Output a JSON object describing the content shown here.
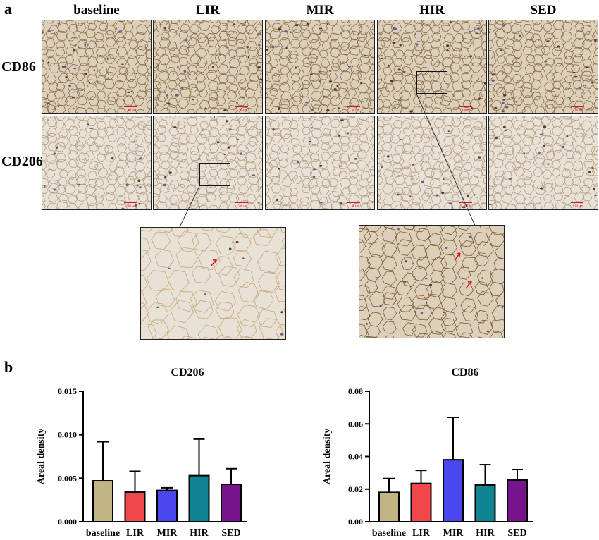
{
  "panel_a": {
    "letter": "a"
  },
  "panel_b": {
    "letter": "b"
  },
  "groups": [
    "baseline",
    "LIR",
    "MIR",
    "HIR",
    "SED"
  ],
  "rows": [
    "CD86",
    "CD206"
  ],
  "scale_bar_label": "50 μm",
  "colors": {
    "baseline": "#c2b583",
    "LIR": "#f2464a",
    "MIR": "#4848ee",
    "HIR": "#118494",
    "SED": "#76138d",
    "roi_arrow": "#e0141e",
    "cd86_tissue": "#ddd0bb",
    "cd206_tissue": "#e8e1d6"
  },
  "chart_data": [
    {
      "type": "bar",
      "title": "CD206",
      "categories": [
        "baseline",
        "LIR",
        "MIR",
        "HIR",
        "SED"
      ],
      "values": [
        0.0047,
        0.0034,
        0.0036,
        0.0053,
        0.0043
      ],
      "error_upper": [
        0.0092,
        0.0058,
        0.0039,
        0.0095,
        0.0061
      ],
      "ylabel": "Areal density",
      "ylim": [
        0,
        0.015
      ],
      "yticks": [
        "0.000",
        "0.005",
        "0.010",
        "0.015"
      ],
      "grid": false
    },
    {
      "type": "bar",
      "title": "CD86",
      "categories": [
        "baseline",
        "LIR",
        "MIR",
        "HIR",
        "SED"
      ],
      "values": [
        0.018,
        0.0235,
        0.038,
        0.0225,
        0.0255
      ],
      "error_upper": [
        0.0265,
        0.0315,
        0.064,
        0.035,
        0.032
      ],
      "ylabel": "Areal density",
      "ylim": [
        0,
        0.08
      ],
      "yticks": [
        "0.00",
        "0.02",
        "0.04",
        "0.06",
        "0.08"
      ],
      "grid": false
    }
  ]
}
